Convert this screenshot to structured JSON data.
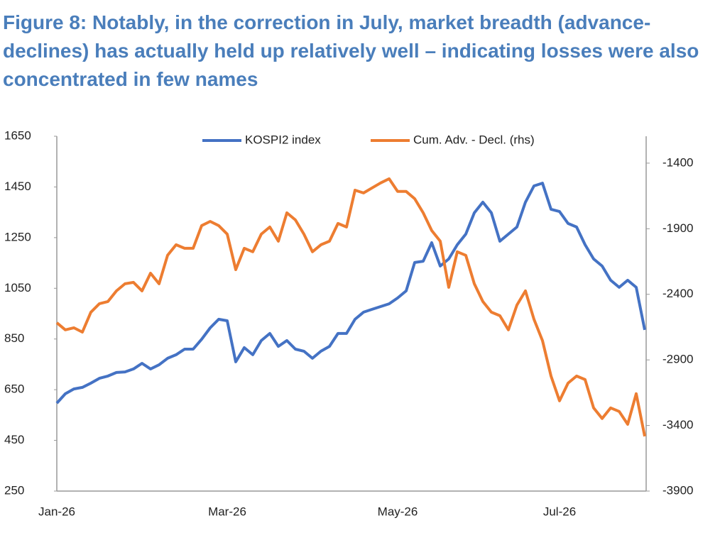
{
  "chart_data": {
    "type": "line",
    "title": "Figure 8: Notably, in the correction in July, market breadth (advance-declines) has actually held up relatively well – indicating losses were also concentrated in few names",
    "categories": [
      "Jan-26",
      null,
      null,
      null,
      null,
      null,
      null,
      null,
      null,
      null,
      null,
      null,
      null,
      null,
      null,
      null,
      null,
      null,
      null,
      null,
      "Mar-26",
      null,
      null,
      null,
      null,
      null,
      null,
      null,
      null,
      null,
      null,
      null,
      null,
      null,
      null,
      null,
      null,
      null,
      null,
      null,
      "May-26",
      null,
      null,
      null,
      null,
      null,
      null,
      null,
      null,
      null,
      null,
      null,
      null,
      null,
      null,
      null,
      null,
      null,
      null,
      "Jul-26",
      null,
      null,
      null,
      null,
      null,
      null,
      null,
      null,
      null,
      null
    ],
    "series": [
      {
        "name": "KOSPI2 index",
        "color": "#4472c4",
        "axis": "y",
        "values": [
          597,
          634,
          653,
          659,
          676,
          695,
          704,
          718,
          720,
          732,
          754,
          732,
          748,
          774,
          788,
          810,
          810,
          849,
          894,
          928,
          922,
          760,
          816,
          788,
          844,
          872,
          821,
          844,
          810,
          802,
          774,
          802,
          821,
          872,
          872,
          928,
          956,
          967,
          978,
          989,
          1012,
          1040,
          1152,
          1157,
          1230,
          1138,
          1166,
          1222,
          1264,
          1348,
          1390,
          1348,
          1236,
          1264,
          1292,
          1390,
          1454,
          1465,
          1362,
          1353,
          1306,
          1292,
          1222,
          1166,
          1138,
          1082,
          1054,
          1082,
          1054,
          886
        ]
      },
      {
        "name": "Cum. Adv. - Decl. (rhs)",
        "color": "#ed7d31",
        "axis": "y2",
        "values": [
          -2617,
          -2671,
          -2655,
          -2688,
          -2536,
          -2471,
          -2455,
          -2374,
          -2320,
          -2309,
          -2374,
          -2239,
          -2320,
          -2103,
          -2022,
          -2049,
          -2049,
          -1876,
          -1844,
          -1876,
          -1941,
          -2212,
          -2049,
          -2076,
          -1941,
          -1887,
          -1995,
          -1779,
          -1833,
          -1941,
          -2076,
          -2022,
          -1995,
          -1860,
          -1887,
          -1606,
          -1627,
          -1589,
          -1551,
          -1519,
          -1616,
          -1616,
          -1671,
          -1779,
          -1914,
          -1995,
          -2347,
          -2076,
          -2103,
          -2320,
          -2455,
          -2536,
          -2563,
          -2671,
          -2482,
          -2374,
          -2590,
          -2753,
          -3023,
          -3212,
          -3077,
          -3023,
          -3050,
          -3266,
          -3347,
          -3266,
          -3293,
          -3391,
          -3158,
          -3483
        ]
      }
    ],
    "ylim": [
      250,
      1650
    ],
    "yticks": [
      250,
      450,
      650,
      850,
      1050,
      1250,
      1450,
      1650
    ],
    "y2lim": [
      -3900,
      -1195
    ],
    "y2ticks": [
      -3900,
      -3400,
      -2900,
      -2400,
      -1900,
      -1400
    ],
    "legend": "top"
  }
}
